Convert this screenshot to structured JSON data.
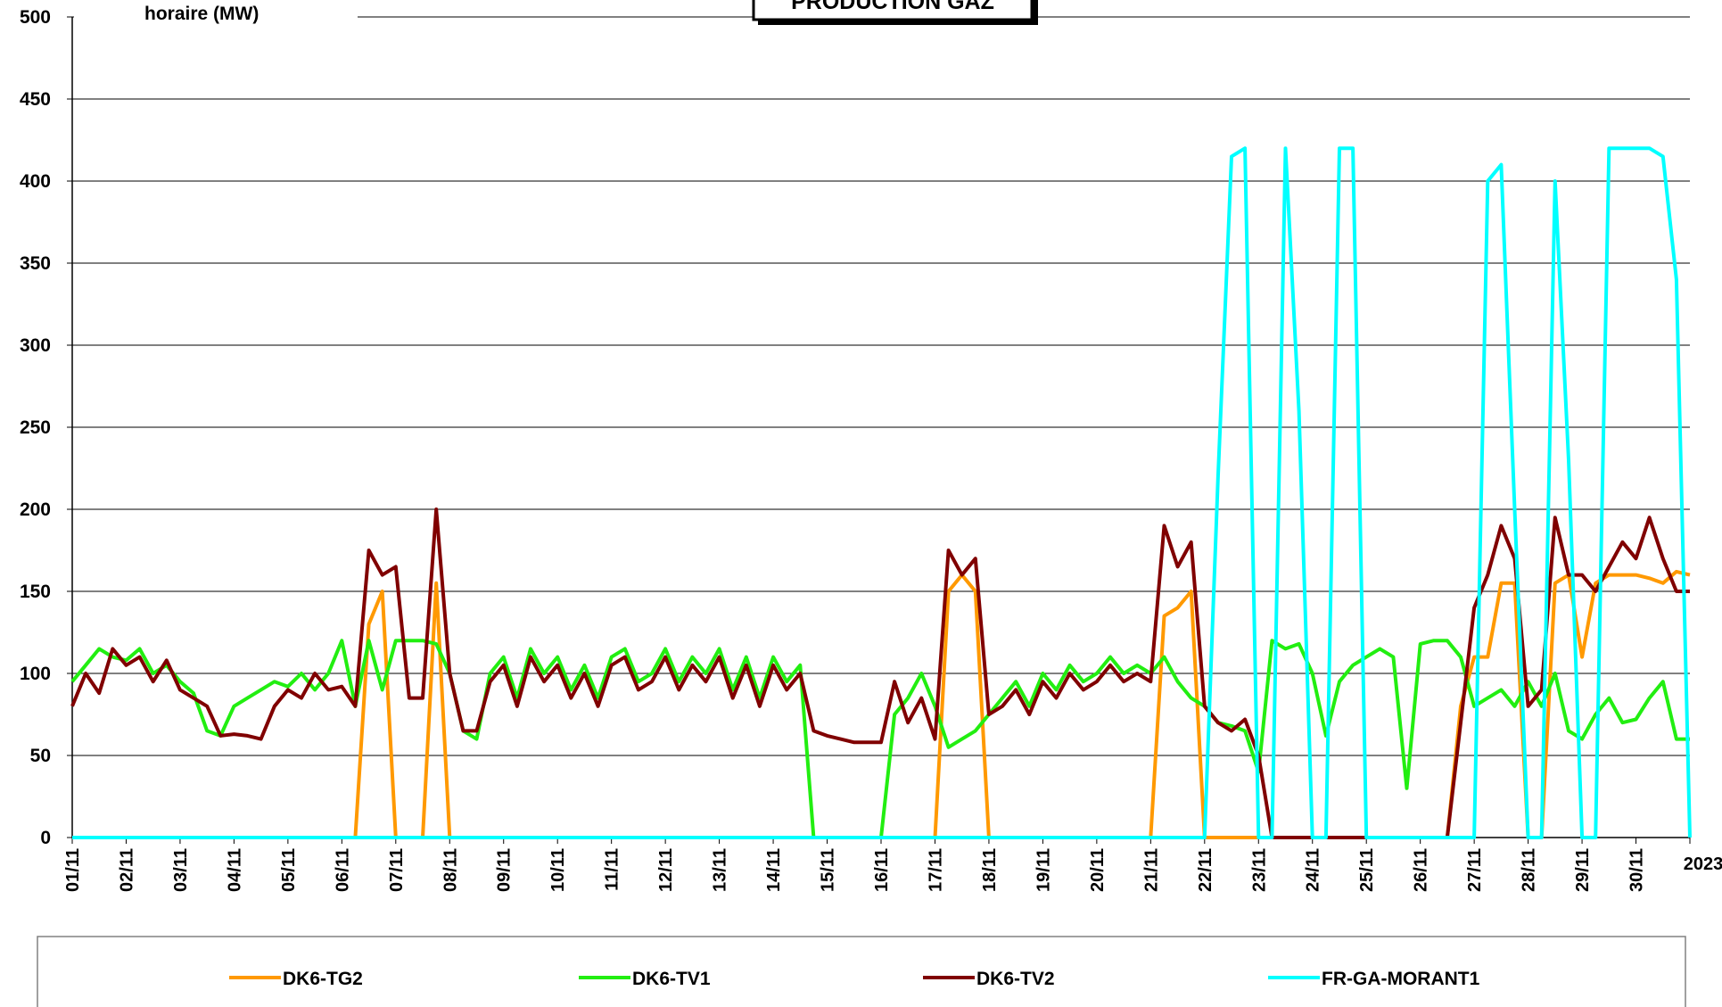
{
  "chart_data": {
    "type": "line",
    "title": "PRODUCTION GAZ",
    "y_label": "horaire (MW)",
    "x": [
      0,
      0.25,
      0.5,
      0.75,
      1,
      1.25,
      1.5,
      1.75,
      2,
      2.25,
      2.5,
      2.75,
      3,
      3.25,
      3.5,
      3.75,
      4,
      4.25,
      4.5,
      4.75,
      5,
      5.25,
      5.5,
      5.75,
      6,
      6.25,
      6.5,
      6.75,
      7,
      7.25,
      7.5,
      7.75,
      8,
      8.25,
      8.5,
      8.75,
      9,
      9.25,
      9.5,
      9.75,
      10,
      10.25,
      10.5,
      10.75,
      11,
      11.25,
      11.5,
      11.75,
      12,
      12.25,
      12.5,
      12.75,
      13,
      13.25,
      13.5,
      13.75,
      14,
      14.25,
      14.5,
      14.75,
      15,
      15.25,
      15.5,
      15.75,
      16,
      16.25,
      16.5,
      16.75,
      17,
      17.25,
      17.5,
      17.75,
      18,
      18.25,
      18.5,
      18.75,
      19,
      19.25,
      19.5,
      19.75,
      20,
      20.25,
      20.5,
      20.75,
      21,
      21.25,
      21.5,
      21.75,
      22,
      22.25,
      22.5,
      22.75,
      23,
      23.25,
      23.5,
      23.75,
      24,
      24.25,
      24.5,
      24.75,
      25,
      25.25,
      25.5,
      25.75,
      26,
      26.25,
      26.5,
      26.75,
      27,
      27.25,
      27.5,
      27.75,
      28,
      28.25,
      28.5,
      28.75,
      29,
      29.25,
      29.5,
      29.75,
      30
    ],
    "series": [
      {
        "name": "DK6-TG2",
        "color": "#ff9900",
        "values": [
          0,
          0,
          0,
          0,
          0,
          0,
          0,
          0,
          0,
          0,
          0,
          0,
          0,
          0,
          0,
          0,
          0,
          0,
          0,
          0,
          0,
          0,
          130,
          150,
          0,
          0,
          0,
          155,
          0,
          0,
          0,
          0,
          0,
          0,
          0,
          0,
          0,
          0,
          0,
          0,
          0,
          0,
          0,
          0,
          0,
          0,
          0,
          0,
          0,
          0,
          0,
          0,
          0,
          0,
          0,
          0,
          0,
          0,
          0,
          0,
          0,
          0,
          0,
          0,
          0,
          150,
          160,
          150,
          0,
          0,
          0,
          0,
          0,
          0,
          0,
          0,
          0,
          0,
          0,
          0,
          0,
          135,
          140,
          150,
          0,
          0,
          0,
          0,
          0,
          0,
          0,
          0,
          0,
          0,
          0,
          0,
          0,
          0,
          0,
          0,
          0,
          0,
          0,
          80,
          110,
          110,
          155,
          155,
          0,
          0,
          155,
          160,
          110,
          155,
          160,
          160,
          160,
          158,
          155,
          162,
          160
        ]
      },
      {
        "name": "DK6-TV1",
        "color": "#22ee11",
        "values": [
          95,
          105,
          115,
          110,
          108,
          115,
          100,
          105,
          95,
          88,
          65,
          62,
          80,
          85,
          90,
          95,
          92,
          100,
          90,
          100,
          120,
          80,
          120,
          90,
          120,
          120,
          120,
          118,
          100,
          65,
          60,
          100,
          110,
          85,
          115,
          100,
          110,
          90,
          105,
          85,
          110,
          115,
          95,
          100,
          115,
          95,
          110,
          100,
          115,
          90,
          110,
          85,
          110,
          95,
          105,
          0,
          0,
          0,
          0,
          0,
          0,
          75,
          85,
          100,
          80,
          55,
          60,
          65,
          75,
          85,
          95,
          80,
          100,
          90,
          105,
          95,
          100,
          110,
          100,
          105,
          100,
          110,
          95,
          85,
          80,
          70,
          68,
          65,
          40,
          120,
          115,
          118,
          100,
          62,
          95,
          105,
          110,
          115,
          110,
          30,
          118,
          120,
          120,
          110,
          80,
          85,
          90,
          80,
          95,
          80,
          100,
          65,
          60,
          75,
          85,
          70,
          72,
          85,
          95,
          60,
          60
        ]
      },
      {
        "name": "DK6-TV2",
        "color": "#800000",
        "values": [
          80,
          100,
          88,
          115,
          105,
          110,
          95,
          108,
          90,
          85,
          80,
          62,
          63,
          62,
          60,
          80,
          90,
          85,
          100,
          90,
          92,
          80,
          175,
          160,
          165,
          85,
          85,
          200,
          100,
          65,
          65,
          95,
          105,
          80,
          110,
          95,
          105,
          85,
          100,
          80,
          105,
          110,
          90,
          95,
          110,
          90,
          105,
          95,
          110,
          85,
          105,
          80,
          105,
          90,
          100,
          65,
          62,
          60,
          58,
          58,
          58,
          95,
          70,
          85,
          60,
          175,
          160,
          170,
          75,
          80,
          90,
          75,
          95,
          85,
          100,
          90,
          95,
          105,
          95,
          100,
          95,
          190,
          165,
          180,
          80,
          70,
          65,
          72,
          50,
          0,
          0,
          0,
          0,
          0,
          0,
          0,
          0,
          0,
          0,
          0,
          0,
          0,
          0,
          70,
          140,
          160,
          190,
          170,
          80,
          90,
          195,
          160,
          160,
          150,
          165,
          180,
          170,
          195,
          170,
          150,
          150
        ]
      },
      {
        "name": "FR-GA-MORANT1",
        "color": "#00ffff",
        "values": [
          0,
          0,
          0,
          0,
          0,
          0,
          0,
          0,
          0,
          0,
          0,
          0,
          0,
          0,
          0,
          0,
          0,
          0,
          0,
          0,
          0,
          0,
          0,
          0,
          0,
          0,
          0,
          0,
          0,
          0,
          0,
          0,
          0,
          0,
          0,
          0,
          0,
          0,
          0,
          0,
          0,
          0,
          0,
          0,
          0,
          0,
          0,
          0,
          0,
          0,
          0,
          0,
          0,
          0,
          0,
          0,
          0,
          0,
          0,
          0,
          0,
          0,
          0,
          0,
          0,
          0,
          0,
          0,
          0,
          0,
          0,
          0,
          0,
          0,
          0,
          0,
          0,
          0,
          0,
          0,
          0,
          0,
          0,
          0,
          0,
          220,
          415,
          420,
          0,
          0,
          420,
          260,
          0,
          0,
          420,
          420,
          0,
          0,
          0,
          0,
          0,
          0,
          0,
          0,
          0,
          400,
          410,
          200,
          0,
          0,
          400,
          230,
          0,
          0,
          420,
          420,
          420,
          420,
          415,
          340,
          0
        ]
      }
    ],
    "xlim": [
      0,
      30
    ],
    "xticks": [
      {
        "value": 0,
        "label": "01/11"
      },
      {
        "value": 1,
        "label": "02/11"
      },
      {
        "value": 2,
        "label": "03/11"
      },
      {
        "value": 3,
        "label": "04/11"
      },
      {
        "value": 4,
        "label": "05/11"
      },
      {
        "value": 5,
        "label": "06/11"
      },
      {
        "value": 6,
        "label": "07/11"
      },
      {
        "value": 7,
        "label": "08/11"
      },
      {
        "value": 8,
        "label": "09/11"
      },
      {
        "value": 9,
        "label": "10/11"
      },
      {
        "value": 10,
        "label": "11/11"
      },
      {
        "value": 11,
        "label": "12/11"
      },
      {
        "value": 12,
        "label": "13/11"
      },
      {
        "value": 13,
        "label": "14/11"
      },
      {
        "value": 14,
        "label": "15/11"
      },
      {
        "value": 15,
        "label": "16/11"
      },
      {
        "value": 16,
        "label": "17/11"
      },
      {
        "value": 17,
        "label": "18/11"
      },
      {
        "value": 18,
        "label": "19/11"
      },
      {
        "value": 19,
        "label": "20/11"
      },
      {
        "value": 20,
        "label": "21/11"
      },
      {
        "value": 21,
        "label": "22/11"
      },
      {
        "value": 22,
        "label": "23/11"
      },
      {
        "value": 23,
        "label": "24/11"
      },
      {
        "value": 24,
        "label": "25/11"
      },
      {
        "value": 25,
        "label": "26/11"
      },
      {
        "value": 26,
        "label": "27/11"
      },
      {
        "value": 27,
        "label": "28/11"
      },
      {
        "value": 28,
        "label": "29/11"
      },
      {
        "value": 29,
        "label": "30/11"
      },
      {
        "value": 30,
        "label": "2023"
      }
    ],
    "ylim": [
      0,
      500
    ],
    "yticks": [
      0,
      50,
      100,
      150,
      200,
      250,
      300,
      350,
      400,
      450,
      500
    ],
    "grid": true,
    "legend": "bottom"
  }
}
